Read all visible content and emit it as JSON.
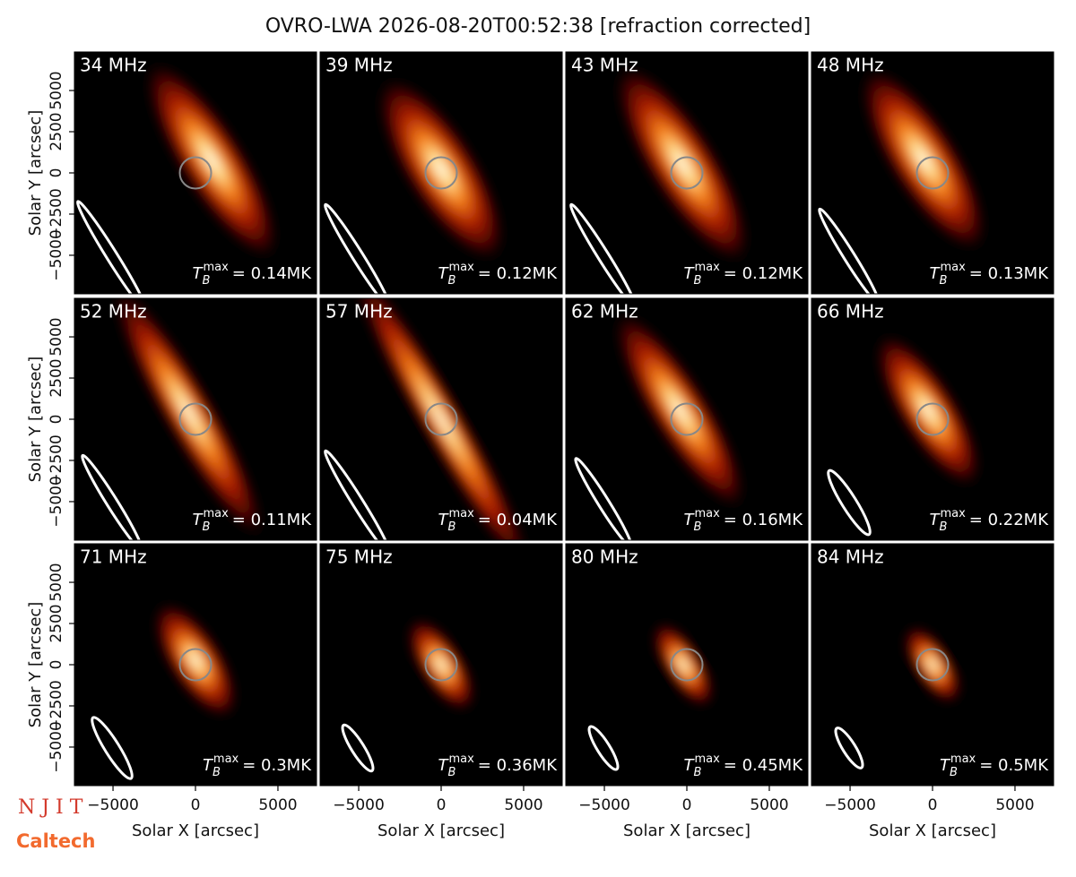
{
  "title": "OVRO-LWA 2026-08-20T00:52:38 [refraction corrected]",
  "logos": [
    "N J I T",
    "Caltech"
  ],
  "chart_data": [
    {
      "type": "image",
      "title": "34 MHz",
      "tb": {
        "symbol": "T",
        "subscript": "B",
        "superscript": "max",
        "text": "= 0.14MK"
      },
      "xlim": [
        -7340,
        7340
      ],
      "ylim": [
        -7340,
        7340
      ],
      "y_label": "Solar Y [arcsec]",
      "yticks": [
        5000,
        2500,
        0,
        {
          "value": -2500,
          "label": "−2500"
        },
        {
          "value": -5000,
          "label": "−5000"
        }
      ]
    },
    {
      "type": "image",
      "title": "39 MHz",
      "tb": {
        "symbol": "T",
        "subscript": "B",
        "superscript": "max",
        "text": "= 0.12MK"
      },
      "xlim": [
        -7340,
        7340
      ],
      "ylim": [
        -7340,
        7340
      ]
    },
    {
      "type": "image",
      "title": "43 MHz",
      "tb": {
        "symbol": "T",
        "subscript": "B",
        "superscript": "max",
        "text": "= 0.12MK"
      },
      "xlim": [
        -7340,
        7340
      ],
      "ylim": [
        -7340,
        7340
      ]
    },
    {
      "type": "image",
      "title": "48 MHz",
      "tb": {
        "symbol": "T",
        "subscript": "B",
        "superscript": "max",
        "text": "= 0.13MK"
      },
      "xlim": [
        -7340,
        7340
      ],
      "ylim": [
        -7340,
        7340
      ]
    },
    {
      "type": "image",
      "title": "52 MHz",
      "tb": {
        "symbol": "T",
        "subscript": "B",
        "superscript": "max",
        "text": "= 0.11MK"
      },
      "xlim": [
        -7340,
        7340
      ],
      "ylim": [
        -7340,
        7340
      ],
      "y_label": "Solar Y [arcsec]",
      "yticks": [
        5000,
        2500,
        0,
        {
          "value": -2500,
          "label": "−2500"
        },
        {
          "value": -5000,
          "label": "−5000"
        }
      ]
    },
    {
      "type": "image",
      "title": "57 MHz",
      "tb": {
        "symbol": "T",
        "subscript": "B",
        "superscript": "max",
        "text": "= 0.04MK"
      },
      "xlim": [
        -7340,
        7340
      ],
      "ylim": [
        -7340,
        7340
      ]
    },
    {
      "type": "image",
      "title": "62 MHz",
      "tb": {
        "symbol": "T",
        "subscript": "B",
        "superscript": "max",
        "text": "= 0.16MK"
      },
      "xlim": [
        -7340,
        7340
      ],
      "ylim": [
        -7340,
        7340
      ]
    },
    {
      "type": "image",
      "title": "66 MHz",
      "tb": {
        "symbol": "T",
        "subscript": "B",
        "superscript": "max",
        "text": "= 0.22MK"
      },
      "xlim": [
        -7340,
        7340
      ],
      "ylim": [
        -7340,
        7340
      ]
    },
    {
      "type": "image",
      "title": "71 MHz",
      "tb": {
        "symbol": "T",
        "subscript": "B",
        "superscript": "max",
        "text": "= 0.3MK"
      },
      "xlim": [
        -7340,
        7340
      ],
      "ylim": [
        -7340,
        7340
      ],
      "y_label": "Solar Y [arcsec]",
      "yticks": [
        5000,
        2500,
        0,
        {
          "value": -2500,
          "label": "−2500"
        },
        {
          "value": -5000,
          "label": "−5000"
        }
      ],
      "x_label": "Solar X [arcsec]",
      "xticks": [
        {
          "value": -5000,
          "label": "−5000"
        },
        0,
        5000
      ]
    },
    {
      "type": "image",
      "title": "75 MHz",
      "tb": {
        "symbol": "T",
        "subscript": "B",
        "superscript": "max",
        "text": "= 0.36MK"
      },
      "xlim": [
        -7340,
        7340
      ],
      "ylim": [
        -7340,
        7340
      ],
      "x_label": "Solar X [arcsec]",
      "xticks": [
        {
          "value": -5000,
          "label": "−5000"
        },
        0,
        5000
      ]
    },
    {
      "type": "image",
      "title": "80 MHz",
      "tb": {
        "symbol": "T",
        "subscript": "B",
        "superscript": "max",
        "text": "= 0.45MK"
      },
      "xlim": [
        -7340,
        7340
      ],
      "ylim": [
        -7340,
        7340
      ],
      "x_label": "Solar X [arcsec]",
      "xticks": [
        {
          "value": -5000,
          "label": "−5000"
        },
        0,
        5000
      ]
    },
    {
      "type": "image",
      "title": "84 MHz",
      "tb": {
        "symbol": "T",
        "subscript": "B",
        "superscript": "max",
        "text": "= 0.5MK"
      },
      "xlim": [
        -7340,
        7340
      ],
      "ylim": [
        -7340,
        7340
      ],
      "x_label": "Solar X [arcsec]",
      "xticks": [
        {
          "value": -5000,
          "label": "−5000"
        },
        0,
        5000
      ]
    }
  ]
}
